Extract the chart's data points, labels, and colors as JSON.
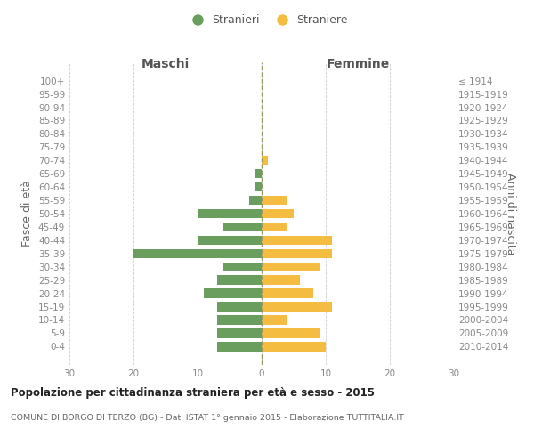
{
  "age_groups": [
    "100+",
    "95-99",
    "90-94",
    "85-89",
    "80-84",
    "75-79",
    "70-74",
    "65-69",
    "60-64",
    "55-59",
    "50-54",
    "45-49",
    "40-44",
    "35-39",
    "30-34",
    "25-29",
    "20-24",
    "15-19",
    "10-14",
    "5-9",
    "0-4"
  ],
  "birth_years": [
    "≤ 1914",
    "1915-1919",
    "1920-1924",
    "1925-1929",
    "1930-1934",
    "1935-1939",
    "1940-1944",
    "1945-1949",
    "1950-1954",
    "1955-1959",
    "1960-1964",
    "1965-1969",
    "1970-1974",
    "1975-1979",
    "1980-1984",
    "1985-1989",
    "1990-1994",
    "1995-1999",
    "2000-2004",
    "2005-2009",
    "2010-2014"
  ],
  "maschi": [
    0,
    0,
    0,
    0,
    0,
    0,
    0,
    1,
    1,
    2,
    10,
    6,
    10,
    20,
    6,
    7,
    9,
    7,
    7,
    7,
    7
  ],
  "femmine": [
    0,
    0,
    0,
    0,
    0,
    0,
    1,
    0,
    0,
    4,
    5,
    4,
    11,
    11,
    9,
    6,
    8,
    11,
    4,
    9,
    10
  ],
  "color_maschi": "#6a9e5e",
  "color_femmine": "#f5bc42",
  "title": "Popolazione per cittadinanza straniera per età e sesso - 2015",
  "subtitle": "COMUNE DI BORGO DI TERZO (BG) - Dati ISTAT 1° gennaio 2015 - Elaborazione TUTTITALIA.IT",
  "ylabel_left": "Fasce di età",
  "ylabel_right": "Anni di nascita",
  "xlabel_left": "Maschi",
  "xlabel_right": "Femmine",
  "legend_maschi": "Stranieri",
  "legend_femmine": "Straniere",
  "xlim": 30,
  "bg_color": "#ffffff",
  "grid_color": "#cccccc",
  "zero_line_color": "#999966",
  "tick_color": "#808080",
  "label_color": "#888888"
}
